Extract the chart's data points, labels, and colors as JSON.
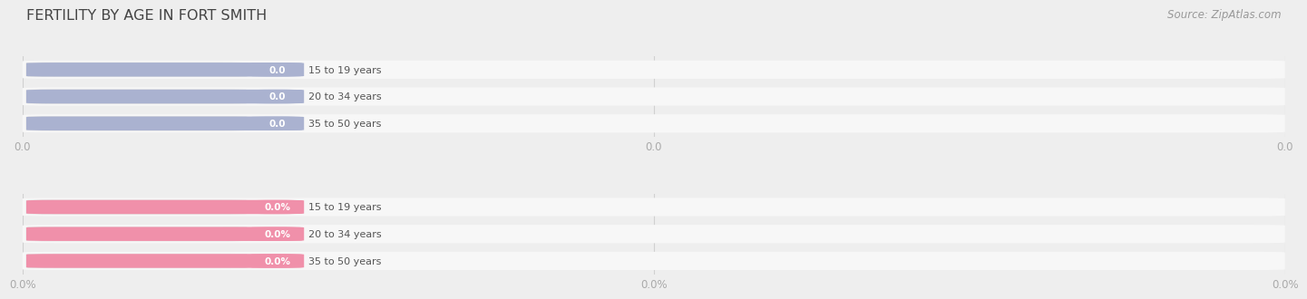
{
  "title": "FERTILITY BY AGE IN FORT SMITH",
  "source": "Source: ZipAtlas.com",
  "top_section": {
    "categories": [
      "15 to 19 years",
      "20 to 34 years",
      "35 to 50 years"
    ],
    "values": [
      0.0,
      0.0,
      0.0
    ],
    "bar_color": "#aab2d0",
    "xtick_labels": [
      "0.0",
      "0.0",
      "0.0"
    ]
  },
  "bottom_section": {
    "categories": [
      "15 to 19 years",
      "20 to 34 years",
      "35 to 50 years"
    ],
    "values": [
      0.0,
      0.0,
      0.0
    ],
    "bar_color": "#f090aa",
    "xtick_labels": [
      "0.0%",
      "0.0%",
      "0.0%"
    ]
  },
  "bg_color": "#eeeeee",
  "bar_bg_color": "#f7f7f7",
  "title_color": "#444444",
  "source_color": "#999999",
  "label_text_color": "#555555",
  "tick_color": "#aaaaaa"
}
